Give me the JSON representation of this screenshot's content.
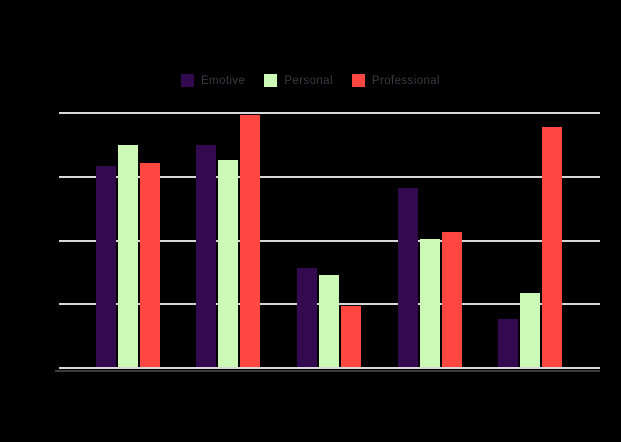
{
  "background_color": "#000000",
  "legend": {
    "items": [
      {
        "label": "Emotive",
        "color": "#330a50"
      },
      {
        "label": "Personal",
        "color": "#ccf9b6"
      },
      {
        "label": "Professional",
        "color": "#ff4742"
      }
    ],
    "text_color": "#3b3b40",
    "position": "top-center"
  },
  "chart_data": {
    "type": "bar",
    "title": "",
    "xlabel": "",
    "ylabel": "",
    "categories": [
      "",
      "",
      "",
      "",
      ""
    ],
    "series": [
      {
        "name": "Emotive",
        "color": "#330a50",
        "values": [
          79,
          87,
          39,
          70,
          19
        ]
      },
      {
        "name": "Personal",
        "color": "#ccf9b6",
        "values": [
          87,
          81,
          36,
          50,
          29
        ]
      },
      {
        "name": "Professional",
        "color": "#ff4742",
        "values": [
          80,
          99,
          24,
          53,
          94
        ]
      }
    ],
    "ylim": [
      0,
      100
    ],
    "gridline_values": [
      0,
      25,
      50,
      75,
      100
    ],
    "grid_color": "#d8d8d8",
    "axis_line_color": "#3c3c3c",
    "grid_on": true,
    "tick_labels_visible": false,
    "legend_position": "top-center"
  }
}
